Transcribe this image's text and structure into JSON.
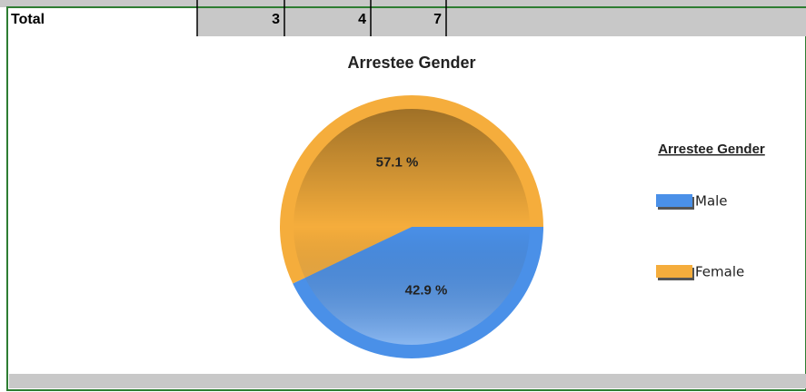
{
  "table": {
    "rows": [
      [
        "Total",
        3,
        4,
        7
      ]
    ]
  },
  "chart_data": {
    "type": "pie",
    "title": "Arrestee Gender",
    "legend_title": "Arrestee Gender",
    "categories": [
      "Male",
      "Female"
    ],
    "values": [
      42.9,
      57.1
    ],
    "value_labels": [
      "42.9 %",
      "57.1 %"
    ],
    "colors": [
      "#4a90e8",
      "#f5ad3c"
    ],
    "legend": "right"
  }
}
